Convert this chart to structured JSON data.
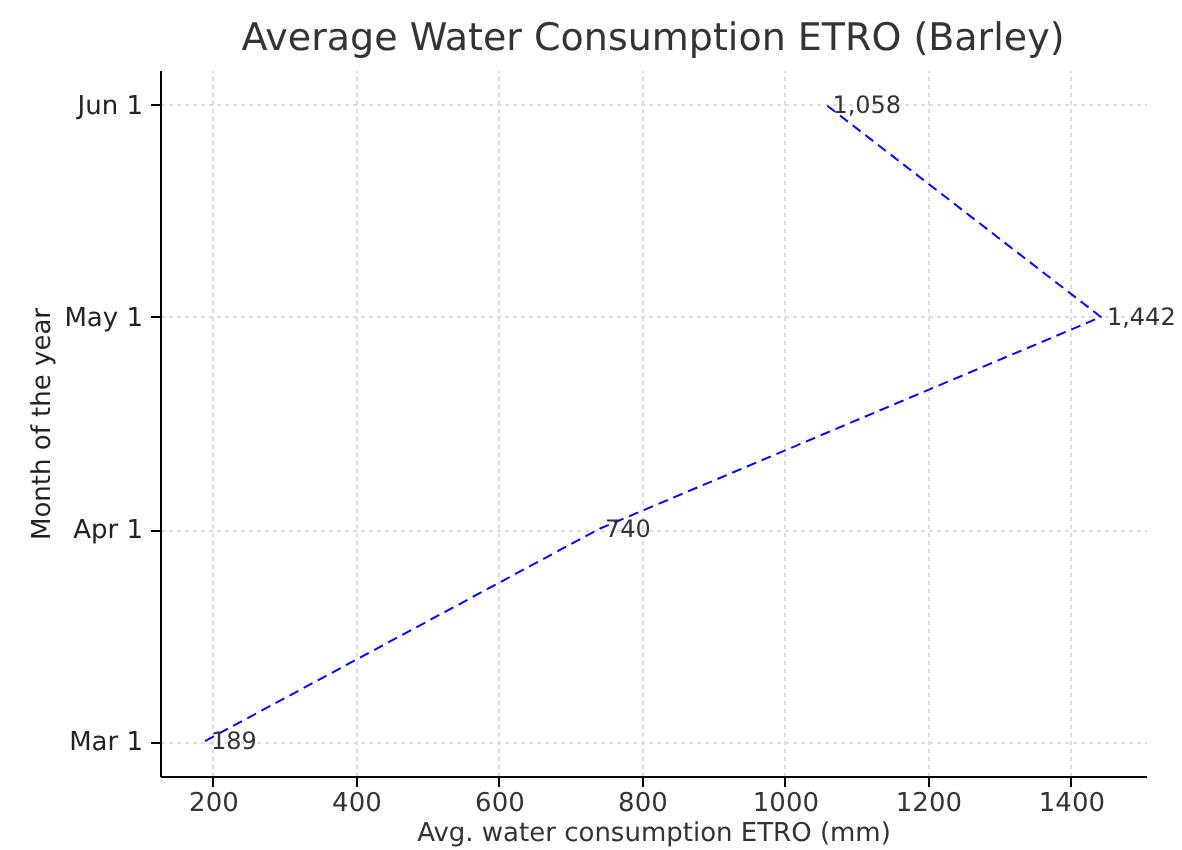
{
  "chart_data": {
    "type": "line",
    "orientation": "horizontal",
    "title": "Average Water Consumption ETRO (Barley)",
    "xlabel": "Avg. water consumption ETRO (mm)",
    "ylabel": "Month of the year",
    "categories": [
      "Jun 1",
      "May 1",
      "Apr 1",
      "Mar 1"
    ],
    "series": [
      {
        "color": "#0000ff",
        "values": [
          1058,
          1442,
          740,
          189
        ],
        "value_labels": [
          "1,058",
          "1,442",
          "740",
          "189"
        ]
      }
    ],
    "xlim": [
      126,
      1505
    ],
    "xticks": [
      200,
      400,
      600,
      800,
      1000,
      1200,
      1400
    ],
    "grid": true,
    "line_style": "dashed",
    "marker": "none"
  }
}
